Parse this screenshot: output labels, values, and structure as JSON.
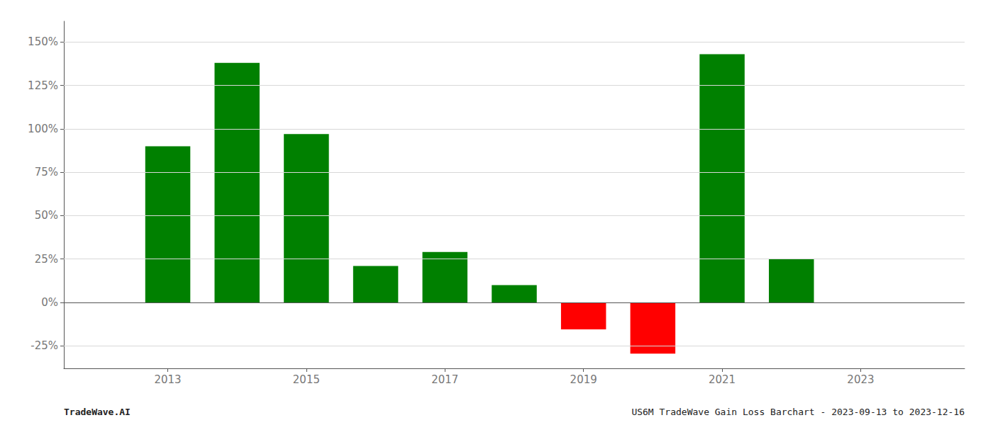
{
  "chart_data": {
    "type": "bar",
    "x": [
      2013,
      2014,
      2015,
      2016,
      2017,
      2018,
      2019,
      2020,
      2021,
      2022
    ],
    "values": [
      0.9,
      1.38,
      0.97,
      0.21,
      0.29,
      0.1,
      -0.155,
      -0.295,
      1.43,
      0.25
    ],
    "colors": [
      "#008000",
      "#008000",
      "#008000",
      "#008000",
      "#008000",
      "#008000",
      "#ff0000",
      "#ff0000",
      "#008000",
      "#008000"
    ],
    "xlim": [
      2011.5,
      2024.5
    ],
    "xticks": [
      2013,
      2015,
      2017,
      2019,
      2021,
      2023
    ],
    "ylim": [
      -0.38,
      1.62
    ],
    "yticks": [
      {
        "value": -0.25,
        "label": "-25%"
      },
      {
        "value": 0.0,
        "label": "0%"
      },
      {
        "value": 0.25,
        "label": "25%"
      },
      {
        "value": 0.5,
        "label": "50%"
      },
      {
        "value": 0.75,
        "label": "75%"
      },
      {
        "value": 1.0,
        "label": "100%"
      },
      {
        "value": 1.25,
        "label": "125%"
      },
      {
        "value": 1.5,
        "label": "150%"
      }
    ],
    "grid": true,
    "annotations": [
      "TradeWave.AI",
      "US6M TradeWave Gain Loss Barchart - 2023-09-13 to 2023-12-16"
    ]
  }
}
